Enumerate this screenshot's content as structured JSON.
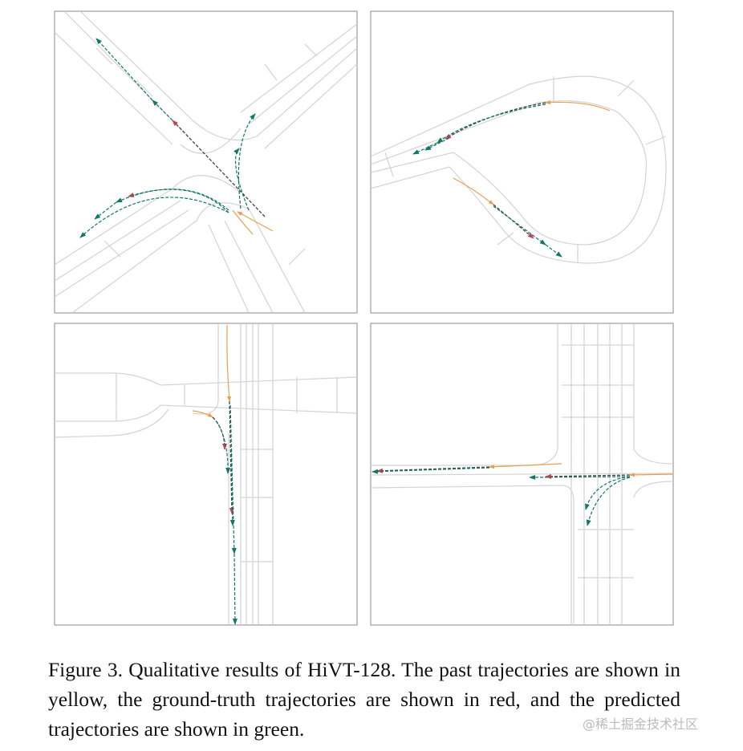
{
  "figure": {
    "panels": [
      "top-left",
      "top-right",
      "bottom-left",
      "bottom-right"
    ],
    "colors": {
      "past": "#e8a050",
      "ground_truth": "#c8404a",
      "predicted": "#117766",
      "road": "#d3d3d3"
    },
    "caption": "Figure 3.  Qualitative results of HiVT-128.  The past trajectories are shown in yellow, the ground-truth trajectories are shown in red, and the predicted trajectories are shown in green."
  },
  "watermark": "@稀土掘金技术社区"
}
